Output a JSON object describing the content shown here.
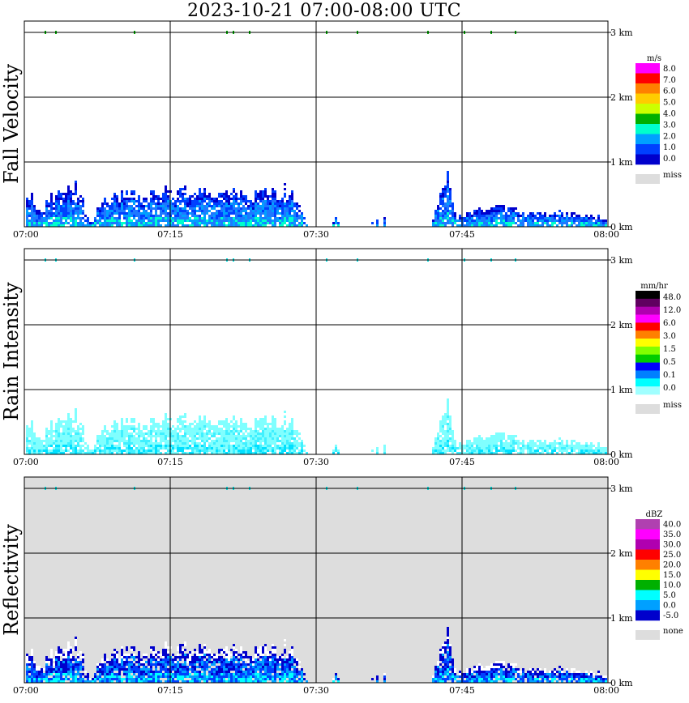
{
  "title": "2023-10-21   07:00-08:00 UTC",
  "chart_data": [
    {
      "type": "heatmap",
      "ylabel": "Fall Velocity",
      "x_ticks": [
        "07:00",
        "07:15",
        "07:30",
        "07:45",
        "08:00"
      ],
      "y_ticks": [
        "0 km",
        "1 km",
        "2 km",
        "3 km"
      ],
      "colorbar": {
        "unit": "m/s",
        "labels": [
          "8.0",
          "7.0",
          "6.0",
          "5.0",
          "4.0",
          "3.0",
          "2.0",
          "1.0",
          "0.0"
        ],
        "colors": [
          "#ff00ff",
          "#ff0000",
          "#ff8000",
          "#ffcc00",
          "#ccff00",
          "#00b000",
          "#00ffcc",
          "#00a0ff",
          "#0040ff",
          "#0000cc"
        ],
        "miss_label": "miss"
      },
      "background": "#ffffff",
      "echo_colors": [
        "#0000cc",
        "#0040ff",
        "#1e78ff",
        "#00a0ff",
        "#00ffcc"
      ]
    },
    {
      "type": "heatmap",
      "ylabel": "Rain Intensity",
      "x_ticks": [
        "07:00",
        "07:15",
        "07:30",
        "07:45",
        "08:00"
      ],
      "y_ticks": [
        "0 km",
        "1 km",
        "2 km",
        "3 km"
      ],
      "colorbar": {
        "unit": "mm/hr",
        "labels": [
          "48.0",
          "12.0",
          "6.0",
          "3.0",
          "1.5",
          "0.5",
          "0.1",
          "0.0"
        ],
        "colors": [
          "#000000",
          "#600060",
          "#b000b0",
          "#ff00ff",
          "#ff0000",
          "#ff8000",
          "#ffff00",
          "#80ff00",
          "#00cc00",
          "#0000ff",
          "#0080ff",
          "#00ffff",
          "#a0ffff"
        ],
        "miss_label": "miss"
      },
      "background": "#ffffff",
      "echo_colors": [
        "#80ffff",
        "#80ffff",
        "#80ffff",
        "#40f0ff",
        "#00e0ff"
      ]
    },
    {
      "type": "heatmap",
      "ylabel": "Reflectivity",
      "x_ticks": [
        "07:00",
        "07:15",
        "07:30",
        "07:45",
        "08:00"
      ],
      "y_ticks": [
        "0 km",
        "1 km",
        "2 km",
        "3 km"
      ],
      "colorbar": {
        "unit": "dBZ",
        "labels": [
          "40.0",
          "35.0",
          "30.0",
          "25.0",
          "20.0",
          "15.0",
          "10.0",
          "5.0",
          "0.0",
          "-5.0"
        ],
        "colors": [
          "#b040b0",
          "#ff00ff",
          "#b000b0",
          "#ff0000",
          "#ff8000",
          "#ffff00",
          "#00b000",
          "#00ffff",
          "#00a0ff",
          "#0000cc"
        ],
        "miss_label": "none"
      },
      "background": "#dddddd",
      "echo_colors": [
        "#ffffff",
        "#0000cc",
        "#0040ff",
        "#00a0ff",
        "#00ffff"
      ]
    }
  ]
}
